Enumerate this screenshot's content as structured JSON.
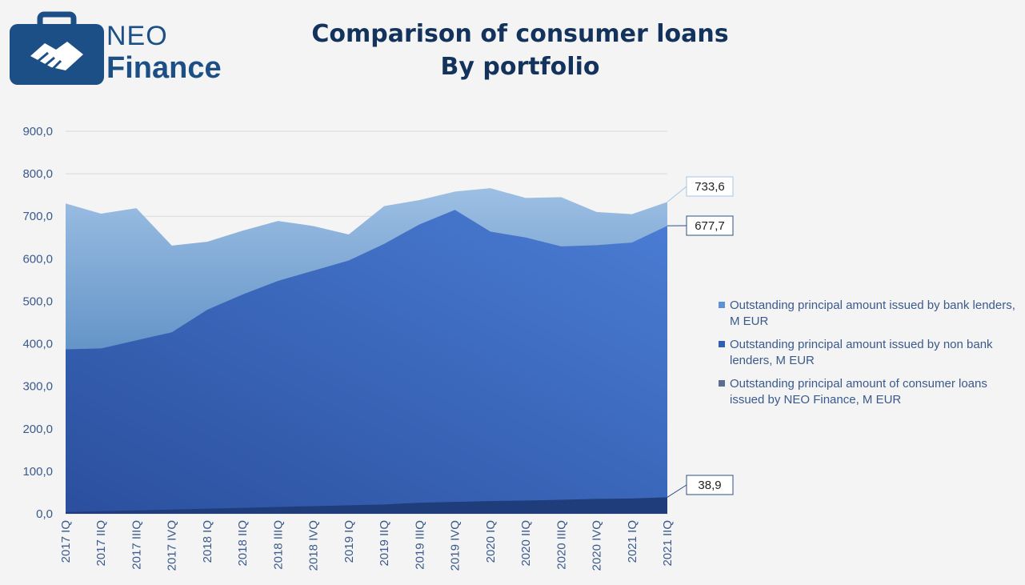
{
  "logo": {
    "line1": "NEO",
    "line2": "Finance",
    "icon": "handshake-briefcase-icon",
    "color": "#1b4f86"
  },
  "title": {
    "line1": "Comparison of consumer loans",
    "line2": "By portfolio"
  },
  "chart_data": {
    "type": "area",
    "categories": [
      "2017 IQ",
      "2017 IIQ",
      "2017 IIIQ",
      "2017 IVQ",
      "2018 IQ",
      "2018 IIQ",
      "2018 IIIQ",
      "2018 IVQ",
      "2019 IQ",
      "2019 IIQ",
      "2019 IIIQ",
      "2019 IVQ",
      "2020 IQ",
      "2020 IIQ",
      "2020 IIIQ",
      "2020 IVQ",
      "2021 IQ",
      "2021 IIQ"
    ],
    "ylim": [
      0,
      900
    ],
    "yticks": [
      0,
      100,
      200,
      300,
      400,
      500,
      600,
      700,
      800,
      900
    ],
    "ytick_labels": [
      "0,0",
      "100,0",
      "200,0",
      "300,0",
      "400,0",
      "500,0",
      "600,0",
      "700,0",
      "800,0",
      "900,0"
    ],
    "grid": true,
    "legend_position": "right",
    "series": [
      {
        "name": "Outstanding principal amount issued by bank lenders, M EUR",
        "color": "#8fb4de",
        "totals": [
          730,
          706,
          719,
          631,
          640,
          666,
          689,
          677,
          657,
          724,
          738,
          758,
          766,
          743,
          745,
          710,
          705,
          733.6
        ]
      },
      {
        "name": "Outstanding principal amount issued by non bank lenders, M EUR",
        "color": "#3a6fc4",
        "totals": [
          387,
          389,
          408,
          427,
          480,
          516,
          548,
          572,
          596,
          635,
          681,
          715,
          664,
          650,
          629,
          632,
          638,
          677.7
        ]
      },
      {
        "name": "Outstanding principal amount of consumer loans issued by NEO Finance, M EUR",
        "color": "#1e3d7a",
        "values": [
          4,
          6,
          8,
          10,
          12,
          14,
          16,
          18,
          20,
          22,
          26,
          28,
          30,
          31,
          33,
          35,
          36,
          38.9
        ]
      }
    ],
    "data_labels": [
      {
        "series": 0,
        "index": 17,
        "text": "733,6"
      },
      {
        "series": 1,
        "index": 17,
        "text": "677,7"
      },
      {
        "series": 2,
        "index": 17,
        "text": "38,9"
      }
    ]
  }
}
